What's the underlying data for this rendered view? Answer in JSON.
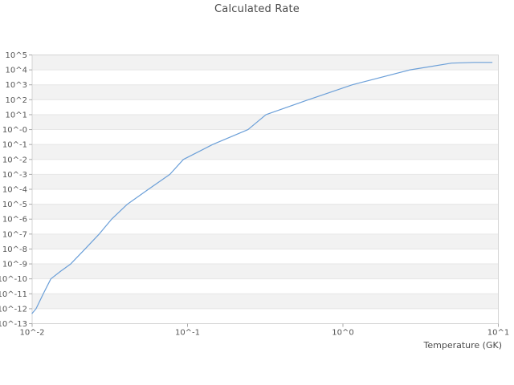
{
  "title": "Calculated Rate",
  "x_axis": {
    "label": "Temperature (GK)",
    "tick_labels": [
      "10^-2",
      "10^-1",
      "10^0",
      "10^1"
    ]
  },
  "y_axis": {
    "tick_labels": [
      "10^5",
      "10^4",
      "10^3",
      "10^2",
      "10^1",
      "10^-0",
      "10^-1",
      "10^-2",
      "10^-3",
      "10^-4",
      "10^-5",
      "10^-6",
      "10^-7",
      "10^-8",
      "10^-9",
      "10^-10",
      "10^-11",
      "10^-12",
      "10^-13"
    ]
  },
  "colors": {
    "line": "#6b9fd8",
    "band": "#f2f2f2",
    "plot_border": "#d4d4d4",
    "gridline": "#e6e6e6",
    "tick_mark": "#aaaaaa",
    "tick_text": "#555555",
    "title_text": "#4a4a4a"
  },
  "chart_data": {
    "type": "line",
    "title": "Calculated Rate",
    "xlabel": "Temperature (GK)",
    "ylabel": "",
    "x_scale": "log",
    "y_scale": "log",
    "xlim": [
      0.01,
      10
    ],
    "ylim": [
      1e-13,
      100000.0
    ],
    "grid": "horizontal-striped-bands",
    "legend_position": "none",
    "x_tick_labels": [
      "10^-2",
      "10^-1",
      "10^0",
      "10^1"
    ],
    "y_tick_labels": [
      "10^5",
      "10^4",
      "10^3",
      "10^2",
      "10^1",
      "10^-0",
      "10^-1",
      "10^-2",
      "10^-3",
      "10^-4",
      "10^-5",
      "10^-6",
      "10^-7",
      "10^-8",
      "10^-9",
      "10^-10",
      "10^-11",
      "10^-12",
      "10^-13"
    ],
    "series": [
      {
        "name": "calculated-rate",
        "points_T_GK_vs_log10_rate": [
          [
            0.01,
            -12.32
          ],
          [
            0.0106,
            -12.0
          ],
          [
            0.0118,
            -11.0
          ],
          [
            0.0132,
            -10.0
          ],
          [
            0.0152,
            -9.5
          ],
          [
            0.0177,
            -9.0
          ],
          [
            0.0219,
            -8.0
          ],
          [
            0.027,
            -7.0
          ],
          [
            0.0325,
            -6.0
          ],
          [
            0.041,
            -5.0
          ],
          [
            0.056,
            -4.0
          ],
          [
            0.077,
            -3.0
          ],
          [
            0.094,
            -2.0
          ],
          [
            0.145,
            -1.0
          ],
          [
            0.245,
            0.0
          ],
          [
            0.32,
            1.0
          ],
          [
            0.6,
            2.0
          ],
          [
            1.15,
            3.0
          ],
          [
            2.7,
            4.0
          ],
          [
            5.0,
            4.45
          ],
          [
            7.0,
            4.5
          ],
          [
            9.1,
            4.5
          ]
        ]
      }
    ]
  }
}
